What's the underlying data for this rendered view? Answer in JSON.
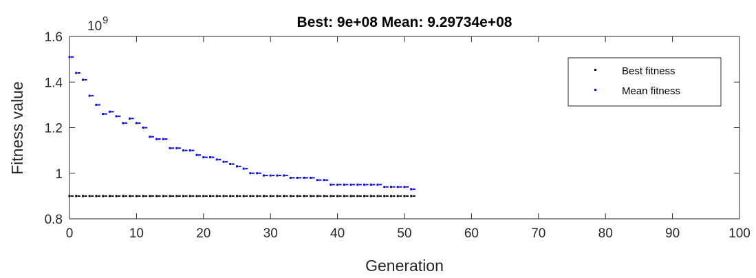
{
  "chart_data": {
    "type": "scatter",
    "title": "Best: 9e+08 Mean: 9.29734e+08",
    "xlabel": "Generation",
    "ylabel": "Fitness value",
    "y_exponent_label": "10",
    "y_exponent_power": "9",
    "xlim": [
      0,
      100
    ],
    "ylim": [
      0.8,
      1.6
    ],
    "xticks": [
      0,
      10,
      20,
      30,
      40,
      50,
      60,
      70,
      80,
      90,
      100
    ],
    "xtick_labels": [
      "0",
      "10",
      "20",
      "30",
      "40",
      "50",
      "60",
      "70",
      "80",
      "90",
      "100"
    ],
    "yticks": [
      0.8,
      1.0,
      1.2,
      1.4,
      1.6
    ],
    "ytick_labels": [
      "0.8",
      "1",
      "1.2",
      "1.4",
      "1.6"
    ],
    "legend_position": "top-right",
    "series": [
      {
        "name": "Best fitness",
        "color": "#000000",
        "x": [
          0,
          1,
          2,
          3,
          4,
          5,
          6,
          7,
          8,
          9,
          10,
          11,
          12,
          13,
          14,
          15,
          16,
          17,
          18,
          19,
          20,
          21,
          22,
          23,
          24,
          25,
          26,
          27,
          28,
          29,
          30,
          31,
          32,
          33,
          34,
          35,
          36,
          37,
          38,
          39,
          40,
          41,
          42,
          43,
          44,
          45,
          46,
          47,
          48,
          49,
          50,
          51
        ],
        "y": [
          0.9,
          0.9,
          0.9,
          0.9,
          0.9,
          0.9,
          0.9,
          0.9,
          0.9,
          0.9,
          0.9,
          0.9,
          0.9,
          0.9,
          0.9,
          0.9,
          0.9,
          0.9,
          0.9,
          0.9,
          0.9,
          0.9,
          0.9,
          0.9,
          0.9,
          0.9,
          0.9,
          0.9,
          0.9,
          0.9,
          0.9,
          0.9,
          0.9,
          0.9,
          0.9,
          0.9,
          0.9,
          0.9,
          0.9,
          0.9,
          0.9,
          0.9,
          0.9,
          0.9,
          0.9,
          0.9,
          0.9,
          0.9,
          0.9,
          0.9,
          0.9,
          0.9
        ]
      },
      {
        "name": "Mean fitness",
        "color": "#0000ff",
        "x": [
          0,
          1,
          2,
          3,
          4,
          5,
          6,
          7,
          8,
          9,
          10,
          11,
          12,
          13,
          14,
          15,
          16,
          17,
          18,
          19,
          20,
          21,
          22,
          23,
          24,
          25,
          26,
          27,
          28,
          29,
          30,
          31,
          32,
          33,
          34,
          35,
          36,
          37,
          38,
          39,
          40,
          41,
          42,
          43,
          44,
          45,
          46,
          47,
          48,
          49,
          50,
          51
        ],
        "y": [
          1.51,
          1.44,
          1.41,
          1.34,
          1.3,
          1.26,
          1.27,
          1.25,
          1.22,
          1.24,
          1.22,
          1.2,
          1.16,
          1.15,
          1.15,
          1.11,
          1.11,
          1.1,
          1.1,
          1.08,
          1.07,
          1.07,
          1.06,
          1.05,
          1.04,
          1.03,
          1.02,
          1.0,
          1.0,
          0.99,
          0.99,
          0.99,
          0.99,
          0.98,
          0.98,
          0.98,
          0.98,
          0.97,
          0.97,
          0.95,
          0.95,
          0.95,
          0.95,
          0.95,
          0.95,
          0.95,
          0.95,
          0.94,
          0.94,
          0.94,
          0.94,
          0.93
        ]
      }
    ]
  }
}
